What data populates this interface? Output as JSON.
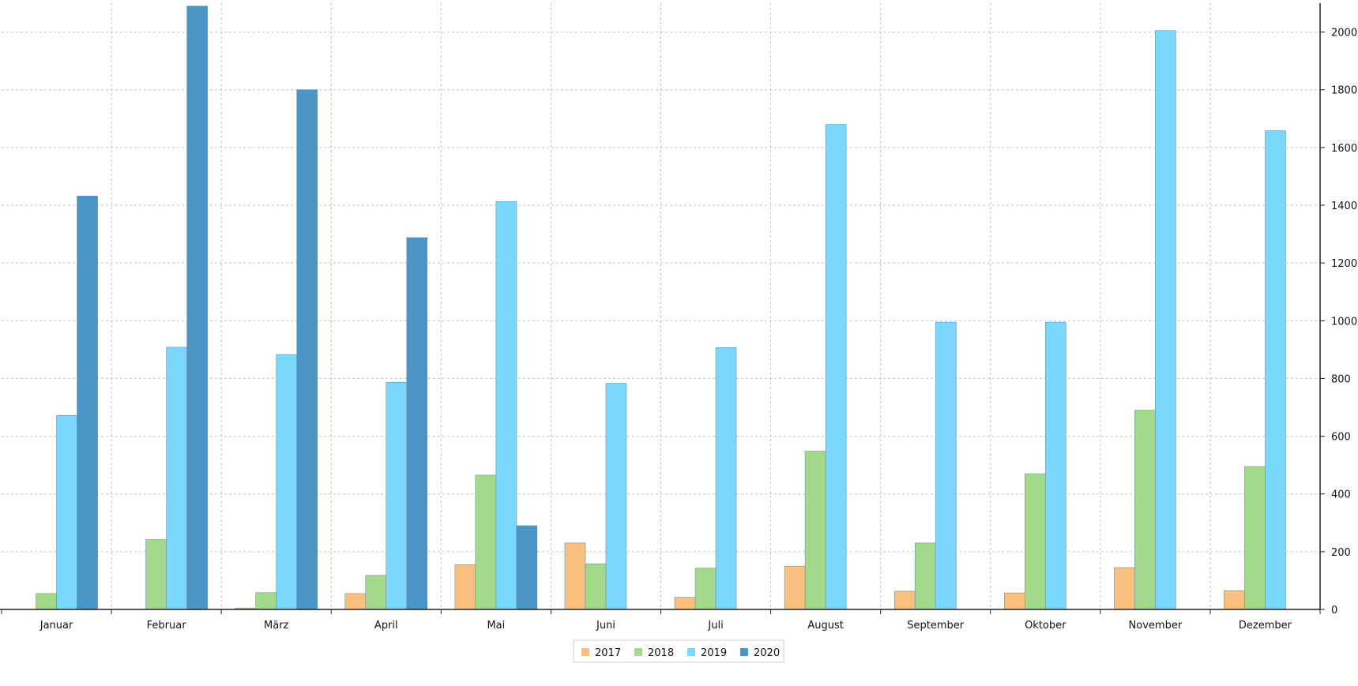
{
  "chart_data": {
    "type": "bar",
    "categories": [
      "Januar",
      "Februar",
      "März",
      "April",
      "Mai",
      "Juni",
      "Juli",
      "August",
      "September",
      "Oktober",
      "November",
      "Dezember"
    ],
    "series": [
      {
        "name": "2017",
        "color": "#f9c080",
        "values": [
          0,
          0,
          5,
          55,
          155,
          230,
          42,
          150,
          63,
          57,
          145,
          65
        ]
      },
      {
        "name": "2018",
        "color": "#a3d98a",
        "values": [
          55,
          242,
          58,
          118,
          465,
          158,
          143,
          548,
          230,
          470,
          690,
          495
        ]
      },
      {
        "name": "2019",
        "color": "#79d8fc",
        "values": [
          672,
          908,
          883,
          787,
          1413,
          783,
          907,
          1680,
          995,
          995,
          2005,
          1658
        ]
      },
      {
        "name": "2020",
        "color": "#4a94c6",
        "values": [
          1432,
          2090,
          1800,
          1288,
          290,
          0,
          0,
          0,
          0,
          0,
          0,
          0
        ]
      }
    ],
    "yticks": [
      "0",
      "200",
      "400",
      "600",
      "800",
      "1000",
      "1200",
      "1400",
      "1600",
      "1800",
      "2000"
    ],
    "ylim": [
      0,
      2100
    ],
    "y_axis_side": "right",
    "grid": true,
    "legend_position": "bottom-center"
  }
}
